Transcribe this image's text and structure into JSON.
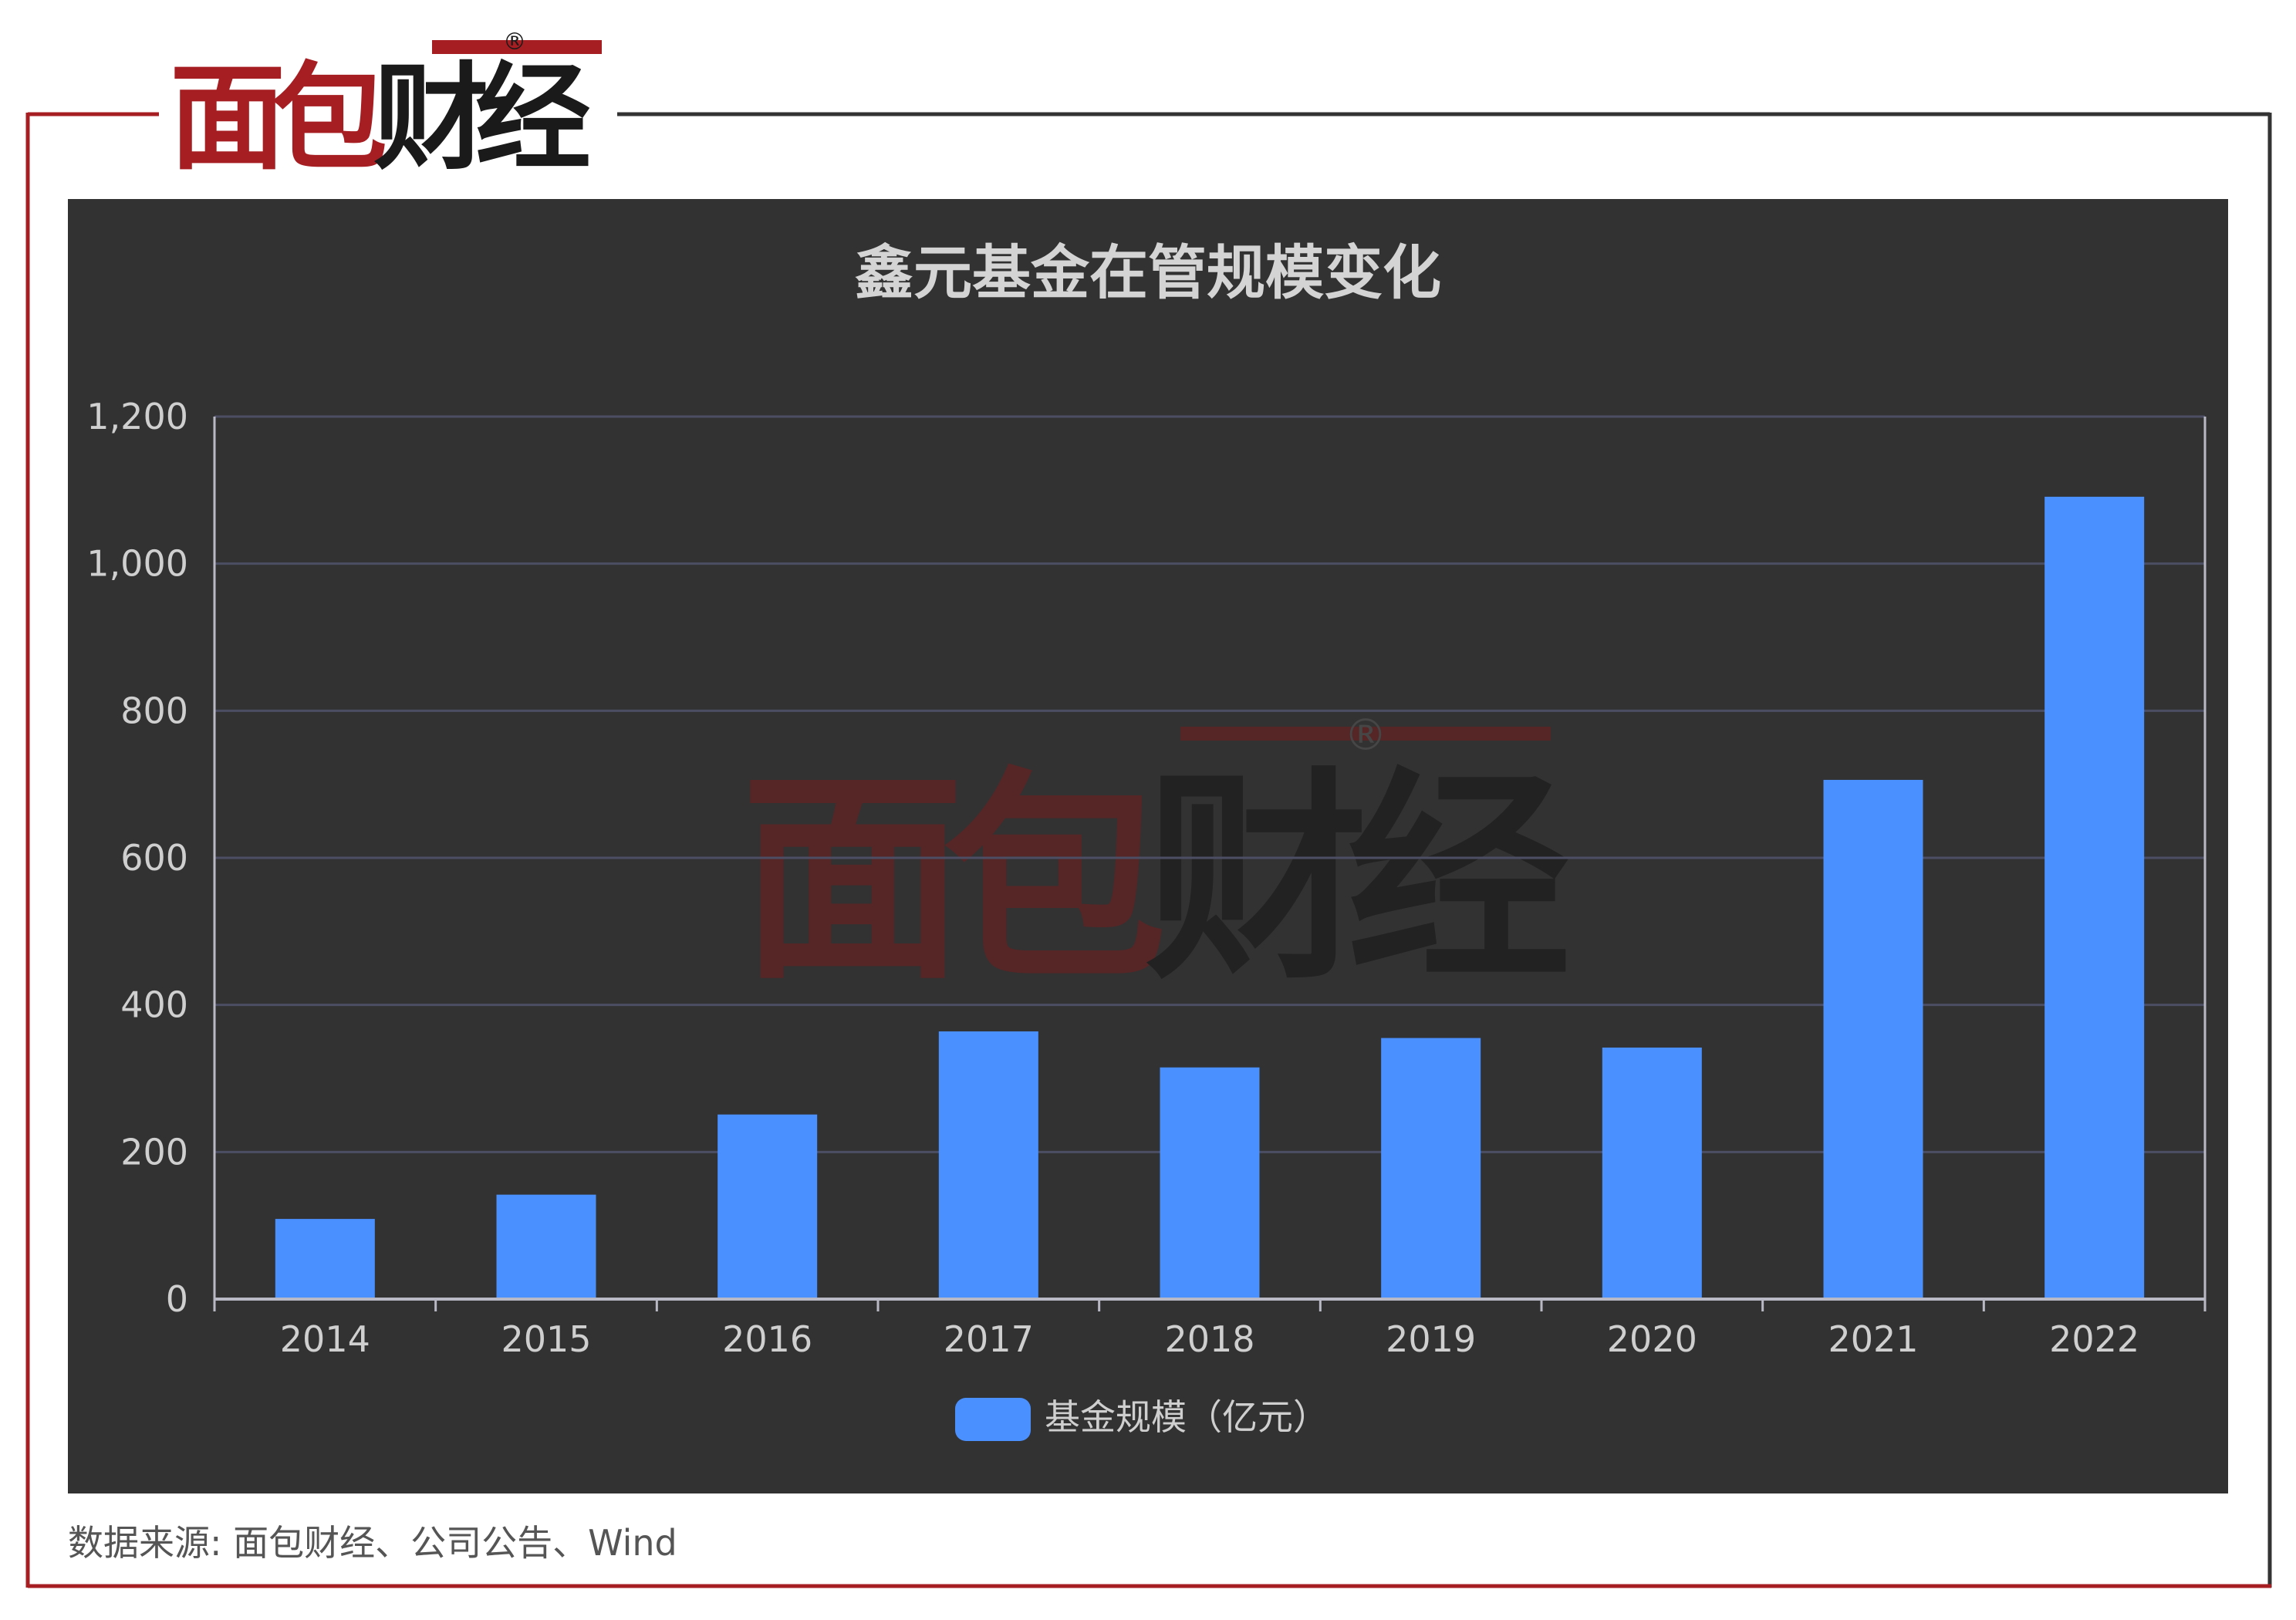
{
  "brand": {
    "name": "面包财经",
    "registered_mark": "®",
    "colors": {
      "red": "#a61e22",
      "dark": "#1a1a1a",
      "frame_red": "#a61e22",
      "frame_dark": "#333333"
    }
  },
  "watermark": {
    "text": "面包财经",
    "registered_mark": "®"
  },
  "panel": {
    "background": "#323232"
  },
  "chart_data": {
    "type": "bar",
    "title": "鑫元基金在管规模变化",
    "categories": [
      "2014",
      "2015",
      "2016",
      "2017",
      "2018",
      "2019",
      "2020",
      "2021",
      "2022"
    ],
    "series": [
      {
        "name": "基金规模（亿元）",
        "color": "#4a90ff",
        "values": [
          109,
          142,
          251,
          364,
          315,
          355,
          342,
          706,
          1091
        ]
      }
    ],
    "ylim": [
      0,
      1200
    ],
    "yticks": [
      "0",
      "200",
      "400",
      "600",
      "800",
      "1,000",
      "1,200"
    ],
    "ytick_values": [
      0,
      200,
      400,
      600,
      800,
      1000,
      1200
    ],
    "grid": true,
    "legend": "bottom-center",
    "text_color": "#cfcfcf",
    "grid_color": "#4c4f64",
    "axis_color": "#b9b9c6"
  },
  "source": {
    "text": "数据来源: 面包财经、公司公告、Wind"
  }
}
